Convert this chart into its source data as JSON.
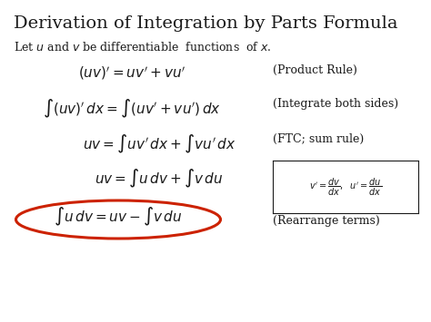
{
  "title": "Derivation of Integration by Parts Formula",
  "subtitle_plain": "Let ",
  "subtitle": "Let $u$ and $v$ be differentiable  functions  of $x$.",
  "eq1_label": "(Product Rule)",
  "eq2_label": "(Integrate both sides)",
  "eq3_label": "(FTC; sum rule)",
  "eq5_label": "(Rearrange terms)",
  "bg_color": "#ffffff",
  "text_color": "#1a1a1a",
  "title_fontsize": 14,
  "body_fontsize": 11,
  "label_fontsize": 9,
  "small_fontsize": 7,
  "ellipse_color": "#cc2200"
}
